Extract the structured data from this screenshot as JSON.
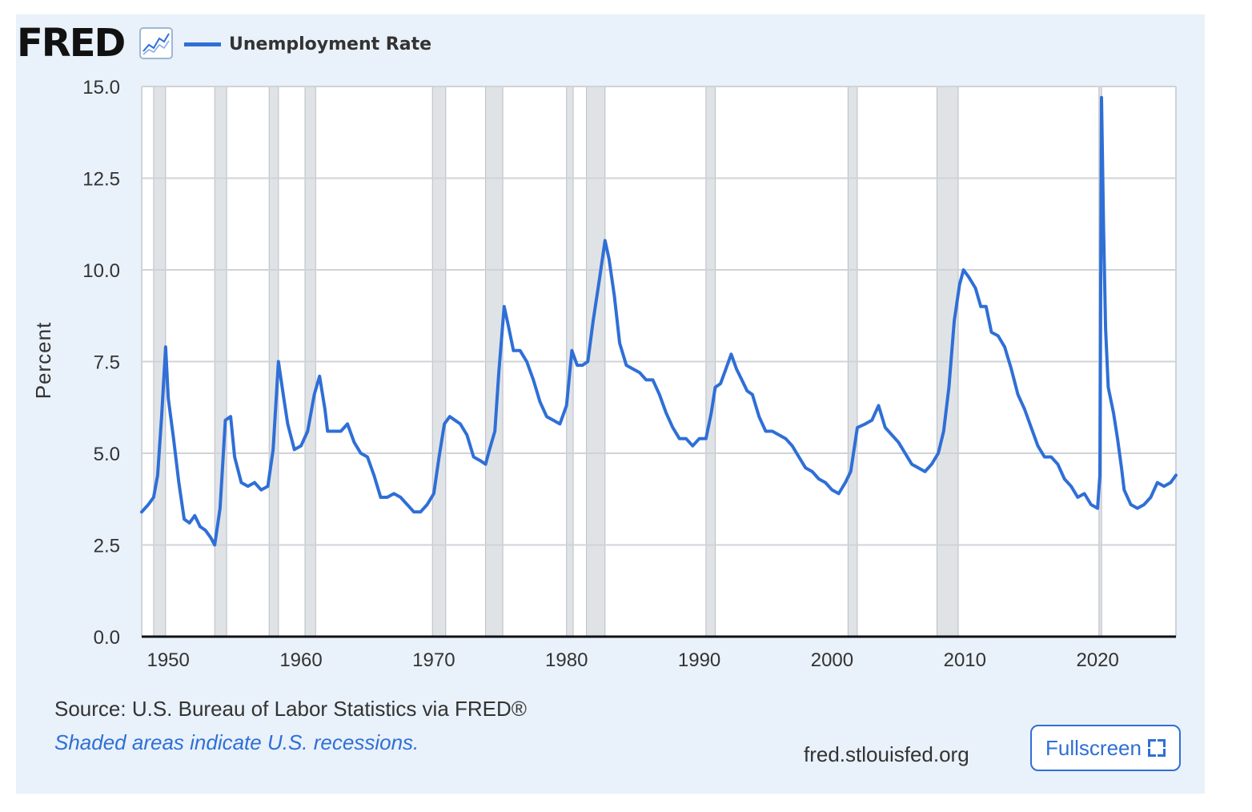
{
  "header": {
    "logo_text": "FRED",
    "legend_label": "Unemployment Rate",
    "series_color": "#2f6fd6"
  },
  "footer": {
    "source": "Source: U.S. Bureau of Labor Statistics via FRED®",
    "note": "Shaded areas indicate U.S. recessions.",
    "site": "fred.stlouisfed.org",
    "fullscreen_label": "Fullscreen"
  },
  "chart_data": {
    "type": "line",
    "title": "",
    "xlabel": "",
    "ylabel": "Percent",
    "xlim": [
      1948.0,
      2025.9
    ],
    "ylim": [
      0,
      15
    ],
    "y_ticks": [
      "0.0",
      "2.5",
      "5.0",
      "7.5",
      "10.0",
      "12.5",
      "15.0"
    ],
    "x_ticks": [
      "1950",
      "1960",
      "1970",
      "1980",
      "1990",
      "2000",
      "2010",
      "2020"
    ],
    "grid": true,
    "legend": "top-left",
    "recessions": [
      [
        1948.9,
        1949.8
      ],
      [
        1953.5,
        1954.4
      ],
      [
        1957.6,
        1958.3
      ],
      [
        1960.3,
        1961.1
      ],
      [
        1969.9,
        1970.9
      ],
      [
        1973.9,
        1975.2
      ],
      [
        1980.0,
        1980.5
      ],
      [
        1981.5,
        1982.9
      ],
      [
        1990.5,
        1991.2
      ],
      [
        2001.2,
        2001.9
      ],
      [
        2007.9,
        2009.5
      ],
      [
        2020.1,
        2020.3
      ]
    ],
    "series": [
      {
        "name": "Unemployment Rate",
        "color": "#2f6fd6",
        "points": [
          [
            1948.0,
            3.4
          ],
          [
            1948.5,
            3.6
          ],
          [
            1948.9,
            3.8
          ],
          [
            1949.2,
            4.4
          ],
          [
            1949.5,
            6.0
          ],
          [
            1949.8,
            7.9
          ],
          [
            1950.0,
            6.5
          ],
          [
            1950.4,
            5.4
          ],
          [
            1950.8,
            4.2
          ],
          [
            1951.2,
            3.2
          ],
          [
            1951.6,
            3.1
          ],
          [
            1952.0,
            3.3
          ],
          [
            1952.4,
            3.0
          ],
          [
            1952.8,
            2.9
          ],
          [
            1953.2,
            2.7
          ],
          [
            1953.5,
            2.5
          ],
          [
            1953.9,
            3.5
          ],
          [
            1954.3,
            5.9
          ],
          [
            1954.7,
            6.0
          ],
          [
            1955.0,
            4.9
          ],
          [
            1955.5,
            4.2
          ],
          [
            1956.0,
            4.1
          ],
          [
            1956.5,
            4.2
          ],
          [
            1957.0,
            4.0
          ],
          [
            1957.5,
            4.1
          ],
          [
            1957.9,
            5.1
          ],
          [
            1958.3,
            7.5
          ],
          [
            1958.7,
            6.5
          ],
          [
            1959.0,
            5.8
          ],
          [
            1959.5,
            5.1
          ],
          [
            1960.0,
            5.2
          ],
          [
            1960.5,
            5.6
          ],
          [
            1961.0,
            6.6
          ],
          [
            1961.4,
            7.1
          ],
          [
            1961.8,
            6.2
          ],
          [
            1962.0,
            5.6
          ],
          [
            1963.0,
            5.6
          ],
          [
            1963.5,
            5.8
          ],
          [
            1964.0,
            5.3
          ],
          [
            1964.5,
            5.0
          ],
          [
            1965.0,
            4.9
          ],
          [
            1965.5,
            4.4
          ],
          [
            1966.0,
            3.8
          ],
          [
            1966.5,
            3.8
          ],
          [
            1967.0,
            3.9
          ],
          [
            1967.5,
            3.8
          ],
          [
            1968.0,
            3.6
          ],
          [
            1968.5,
            3.4
          ],
          [
            1969.0,
            3.4
          ],
          [
            1969.5,
            3.6
          ],
          [
            1970.0,
            3.9
          ],
          [
            1970.4,
            4.9
          ],
          [
            1970.8,
            5.8
          ],
          [
            1971.2,
            6.0
          ],
          [
            1971.6,
            5.9
          ],
          [
            1972.0,
            5.8
          ],
          [
            1972.5,
            5.5
          ],
          [
            1973.0,
            4.9
          ],
          [
            1973.5,
            4.8
          ],
          [
            1973.9,
            4.7
          ],
          [
            1974.2,
            5.1
          ],
          [
            1974.6,
            5.6
          ],
          [
            1974.9,
            7.2
          ],
          [
            1975.3,
            9.0
          ],
          [
            1975.6,
            8.5
          ],
          [
            1976.0,
            7.8
          ],
          [
            1976.5,
            7.8
          ],
          [
            1977.0,
            7.5
          ],
          [
            1977.5,
            7.0
          ],
          [
            1978.0,
            6.4
          ],
          [
            1978.5,
            6.0
          ],
          [
            1979.0,
            5.9
          ],
          [
            1979.5,
            5.8
          ],
          [
            1980.0,
            6.3
          ],
          [
            1980.4,
            7.8
          ],
          [
            1980.8,
            7.4
          ],
          [
            1981.2,
            7.4
          ],
          [
            1981.6,
            7.5
          ],
          [
            1982.0,
            8.6
          ],
          [
            1982.5,
            9.8
          ],
          [
            1982.9,
            10.8
          ],
          [
            1983.2,
            10.3
          ],
          [
            1983.6,
            9.3
          ],
          [
            1984.0,
            8.0
          ],
          [
            1984.5,
            7.4
          ],
          [
            1985.0,
            7.3
          ],
          [
            1985.5,
            7.2
          ],
          [
            1986.0,
            7.0
          ],
          [
            1986.5,
            7.0
          ],
          [
            1987.0,
            6.6
          ],
          [
            1987.5,
            6.1
          ],
          [
            1988.0,
            5.7
          ],
          [
            1988.5,
            5.4
          ],
          [
            1989.0,
            5.4
          ],
          [
            1989.5,
            5.2
          ],
          [
            1990.0,
            5.4
          ],
          [
            1990.5,
            5.4
          ],
          [
            1990.9,
            6.1
          ],
          [
            1991.2,
            6.8
          ],
          [
            1991.6,
            6.9
          ],
          [
            1992.0,
            7.3
          ],
          [
            1992.4,
            7.7
          ],
          [
            1992.8,
            7.3
          ],
          [
            1993.2,
            7.0
          ],
          [
            1993.6,
            6.7
          ],
          [
            1994.0,
            6.6
          ],
          [
            1994.5,
            6.0
          ],
          [
            1995.0,
            5.6
          ],
          [
            1995.5,
            5.6
          ],
          [
            1996.0,
            5.5
          ],
          [
            1996.5,
            5.4
          ],
          [
            1997.0,
            5.2
          ],
          [
            1997.5,
            4.9
          ],
          [
            1998.0,
            4.6
          ],
          [
            1998.5,
            4.5
          ],
          [
            1999.0,
            4.3
          ],
          [
            1999.5,
            4.2
          ],
          [
            2000.0,
            4.0
          ],
          [
            2000.5,
            3.9
          ],
          [
            2001.0,
            4.2
          ],
          [
            2001.4,
            4.5
          ],
          [
            2001.9,
            5.7
          ],
          [
            2002.5,
            5.8
          ],
          [
            2003.0,
            5.9
          ],
          [
            2003.5,
            6.3
          ],
          [
            2004.0,
            5.7
          ],
          [
            2004.5,
            5.5
          ],
          [
            2005.0,
            5.3
          ],
          [
            2005.5,
            5.0
          ],
          [
            2006.0,
            4.7
          ],
          [
            2006.5,
            4.6
          ],
          [
            2007.0,
            4.5
          ],
          [
            2007.5,
            4.7
          ],
          [
            2008.0,
            5.0
          ],
          [
            2008.4,
            5.6
          ],
          [
            2008.8,
            6.8
          ],
          [
            2009.2,
            8.6
          ],
          [
            2009.6,
            9.6
          ],
          [
            2009.9,
            10.0
          ],
          [
            2010.3,
            9.8
          ],
          [
            2010.8,
            9.5
          ],
          [
            2011.2,
            9.0
          ],
          [
            2011.6,
            9.0
          ],
          [
            2012.0,
            8.3
          ],
          [
            2012.5,
            8.2
          ],
          [
            2013.0,
            7.9
          ],
          [
            2013.5,
            7.3
          ],
          [
            2014.0,
            6.6
          ],
          [
            2014.5,
            6.2
          ],
          [
            2015.0,
            5.7
          ],
          [
            2015.5,
            5.2
          ],
          [
            2016.0,
            4.9
          ],
          [
            2016.5,
            4.9
          ],
          [
            2017.0,
            4.7
          ],
          [
            2017.5,
            4.3
          ],
          [
            2018.0,
            4.1
          ],
          [
            2018.5,
            3.8
          ],
          [
            2019.0,
            3.9
          ],
          [
            2019.5,
            3.6
          ],
          [
            2020.0,
            3.5
          ],
          [
            2020.17,
            4.4
          ],
          [
            2020.29,
            14.7
          ],
          [
            2020.45,
            11.1
          ],
          [
            2020.6,
            8.4
          ],
          [
            2020.8,
            6.8
          ],
          [
            2021.2,
            6.1
          ],
          [
            2021.5,
            5.4
          ],
          [
            2021.8,
            4.6
          ],
          [
            2022.0,
            4.0
          ],
          [
            2022.5,
            3.6
          ],
          [
            2023.0,
            3.5
          ],
          [
            2023.5,
            3.6
          ],
          [
            2024.0,
            3.8
          ],
          [
            2024.5,
            4.2
          ],
          [
            2025.0,
            4.1
          ],
          [
            2025.5,
            4.2
          ],
          [
            2025.9,
            4.4
          ]
        ]
      }
    ]
  }
}
